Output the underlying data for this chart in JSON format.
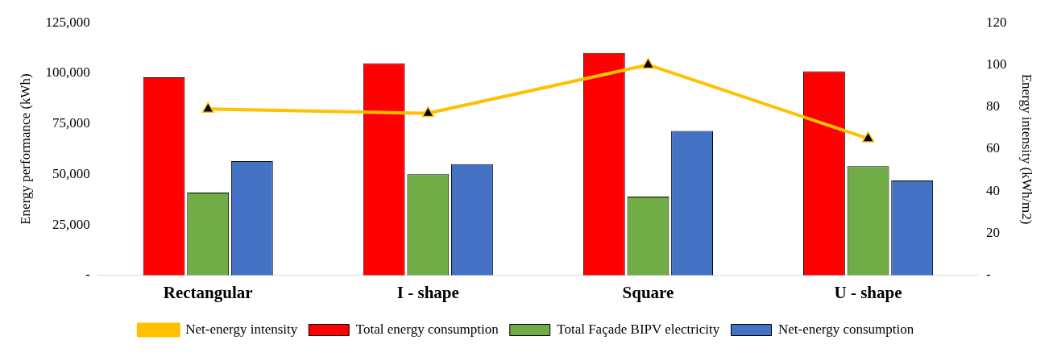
{
  "chart_data": {
    "type": "bar",
    "categories": [
      "Rectangular",
      "I - shape",
      "Square",
      "U - shape"
    ],
    "ylabel": "Energy performance (kWh)",
    "y2label": "Energy intensity (kWh/m2)",
    "series": [
      {
        "name": "Total energy consumption",
        "color": "#ff0000",
        "values": [
          98000,
          105000,
          110000,
          101000
        ]
      },
      {
        "name": "Total Façade BIPV electricity",
        "color": "#70ad47",
        "values": [
          41000,
          50000,
          39000,
          54000
        ]
      },
      {
        "name": "Net-energy consumption",
        "color": "#4472c4",
        "values": [
          56500,
          55000,
          71500,
          47000
        ]
      },
      {
        "name": "Net-energy intensity",
        "color": "#ffc000",
        "type": "line",
        "axis": "y2",
        "marker": "triangle",
        "values": [
          79,
          77,
          100,
          65
        ]
      }
    ],
    "ylim": [
      0,
      125000
    ],
    "yticks": [
      {
        "value": 0,
        "label": "-"
      },
      {
        "value": 25000,
        "label": "25,000"
      },
      {
        "value": 50000,
        "label": "50,000"
      },
      {
        "value": 75000,
        "label": "75,000"
      },
      {
        "value": 100000,
        "label": "100,000"
      },
      {
        "value": 125000,
        "label": "125,000"
      }
    ],
    "y2lim": [
      0,
      120
    ],
    "y2ticks": [
      {
        "value": 0,
        "label": "-"
      },
      20,
      40,
      60,
      80,
      100,
      120
    ],
    "grid": false,
    "legend": "bottom"
  }
}
